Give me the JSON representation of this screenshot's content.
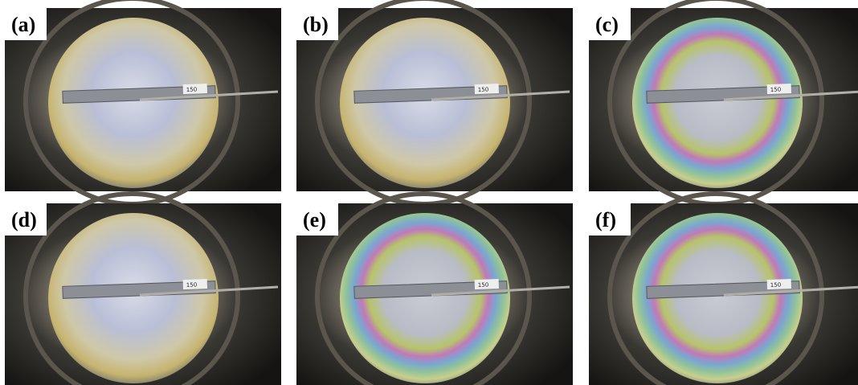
{
  "panels": [
    {
      "label": "(a)",
      "ruler_label": "150"
    },
    {
      "label": "(b)",
      "ruler_label": "150"
    },
    {
      "label": "(c)",
      "ruler_label": "150"
    },
    {
      "label": "(d)",
      "ruler_label": "150"
    },
    {
      "label": "(e)",
      "ruler_label": "150"
    },
    {
      "label": "(f)",
      "ruler_label": "150"
    }
  ]
}
